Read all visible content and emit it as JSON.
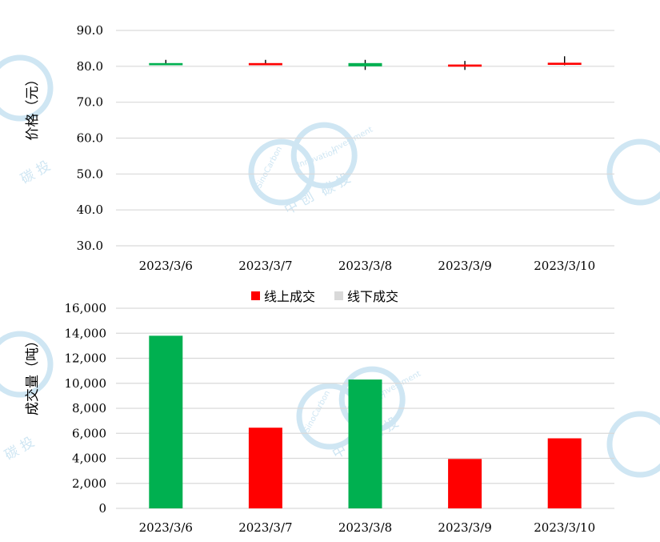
{
  "watermark": {
    "text_a": "SinoCarbon",
    "text_b": "Innovation",
    "text_c": "Investment",
    "text_d": "中 创",
    "text_e": "碳 投",
    "color": "#cfe6f3"
  },
  "colors": {
    "up": "#ff0000",
    "down": "#00b050",
    "offline": "#d9d9d9",
    "grid": "#d9d9d9",
    "axis_text": "#000000"
  },
  "chart_data": [
    {
      "type": "candlestick",
      "ylabel": "价格（元）",
      "ylim": [
        30,
        90
      ],
      "yticks": [
        "30.0",
        "40.0",
        "50.0",
        "60.0",
        "70.0",
        "80.0",
        "90.0"
      ],
      "grid": true,
      "categories": [
        "2023/3/6",
        "2023/3/7",
        "2023/3/8",
        "2023/3/9",
        "2023/3/10"
      ],
      "candles": [
        {
          "open": 80.9,
          "close": 80.3,
          "high": 81.8,
          "low": 80.3,
          "color": "down"
        },
        {
          "open": 80.3,
          "close": 80.9,
          "high": 81.8,
          "low": 80.3,
          "color": "up"
        },
        {
          "open": 80.9,
          "close": 80.0,
          "high": 81.8,
          "low": 79.0,
          "color": "down"
        },
        {
          "open": 79.9,
          "close": 80.5,
          "high": 81.5,
          "low": 79.0,
          "color": "up"
        },
        {
          "open": 80.4,
          "close": 81.0,
          "high": 82.8,
          "low": 80.3,
          "color": "up"
        }
      ]
    },
    {
      "type": "bar",
      "ylabel": "成交量（吨）",
      "ylim": [
        0,
        16000
      ],
      "yticks": [
        "0",
        "2,000",
        "4,000",
        "6,000",
        "8,000",
        "10,000",
        "12,000",
        "14,000",
        "16,000"
      ],
      "grid": true,
      "legend_position": "top",
      "legend": [
        {
          "name": "线上成交",
          "color_key": "up"
        },
        {
          "name": "线下成交",
          "color_key": "offline"
        }
      ],
      "categories": [
        "2023/3/6",
        "2023/3/7",
        "2023/3/8",
        "2023/3/9",
        "2023/3/10"
      ],
      "values": [
        13800,
        6450,
        10300,
        3950,
        5600
      ],
      "bar_colors": [
        "down",
        "up",
        "down",
        "up",
        "up"
      ]
    }
  ]
}
